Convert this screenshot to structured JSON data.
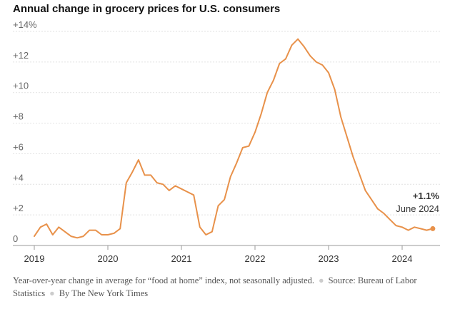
{
  "title": "Annual change in grocery prices for U.S. consumers",
  "footer": {
    "note": "Year-over-year change in average for “food at home” index, not seasonally adjusted.",
    "source": "Source: Bureau of Labor Statistics",
    "credit": "By The New York Times"
  },
  "colors": {
    "line": "#e8914a",
    "grid": "#e2e2e2",
    "baseline": "#999999"
  },
  "chart_data": {
    "type": "line",
    "title": "Annual change in grocery prices for U.S. consumers",
    "xlabel": "",
    "ylabel": "",
    "ylim": [
      0,
      14
    ],
    "y_ticks": [
      "0",
      "+2",
      "+4",
      "+6",
      "+8",
      "+10",
      "+12",
      "+14%"
    ],
    "x_ticks": [
      "2019",
      "2020",
      "2021",
      "2022",
      "2023",
      "2024"
    ],
    "grid": "horizontal",
    "series": [
      {
        "color": "#e8914a",
        "x": [
          "2019-01",
          "2019-02",
          "2019-03",
          "2019-04",
          "2019-05",
          "2019-06",
          "2019-07",
          "2019-08",
          "2019-09",
          "2019-10",
          "2019-11",
          "2019-12",
          "2020-01",
          "2020-02",
          "2020-03",
          "2020-04",
          "2020-05",
          "2020-06",
          "2020-07",
          "2020-08",
          "2020-09",
          "2020-10",
          "2020-11",
          "2020-12",
          "2021-01",
          "2021-02",
          "2021-03",
          "2021-04",
          "2021-05",
          "2021-06",
          "2021-07",
          "2021-08",
          "2021-09",
          "2021-10",
          "2021-11",
          "2021-12",
          "2022-01",
          "2022-02",
          "2022-03",
          "2022-04",
          "2022-05",
          "2022-06",
          "2022-07",
          "2022-08",
          "2022-09",
          "2022-10",
          "2022-11",
          "2022-12",
          "2023-01",
          "2023-02",
          "2023-03",
          "2023-04",
          "2023-05",
          "2023-06",
          "2023-07",
          "2023-08",
          "2023-09",
          "2023-10",
          "2023-11",
          "2023-12",
          "2024-01",
          "2024-02",
          "2024-03",
          "2024-04",
          "2024-05",
          "2024-06"
        ],
        "values": [
          0.6,
          1.2,
          1.4,
          0.7,
          1.2,
          0.9,
          0.6,
          0.5,
          0.6,
          1.0,
          1.0,
          0.7,
          0.7,
          0.8,
          1.1,
          4.1,
          4.8,
          5.6,
          4.6,
          4.6,
          4.1,
          4.0,
          3.6,
          3.9,
          3.7,
          3.5,
          3.3,
          1.2,
          0.7,
          0.9,
          2.6,
          3.0,
          4.5,
          5.4,
          6.4,
          6.5,
          7.4,
          8.6,
          10.0,
          10.8,
          11.9,
          12.2,
          13.1,
          13.5,
          13.0,
          12.4,
          12.0,
          11.8,
          11.3,
          10.2,
          8.4,
          7.1,
          5.8,
          4.7,
          3.6,
          3.0,
          2.4,
          2.1,
          1.7,
          1.3,
          1.2,
          1.0,
          1.2,
          1.1,
          1.0,
          1.1
        ]
      }
    ],
    "annotation": {
      "value": "+1.1%",
      "date": "June 2024"
    }
  }
}
